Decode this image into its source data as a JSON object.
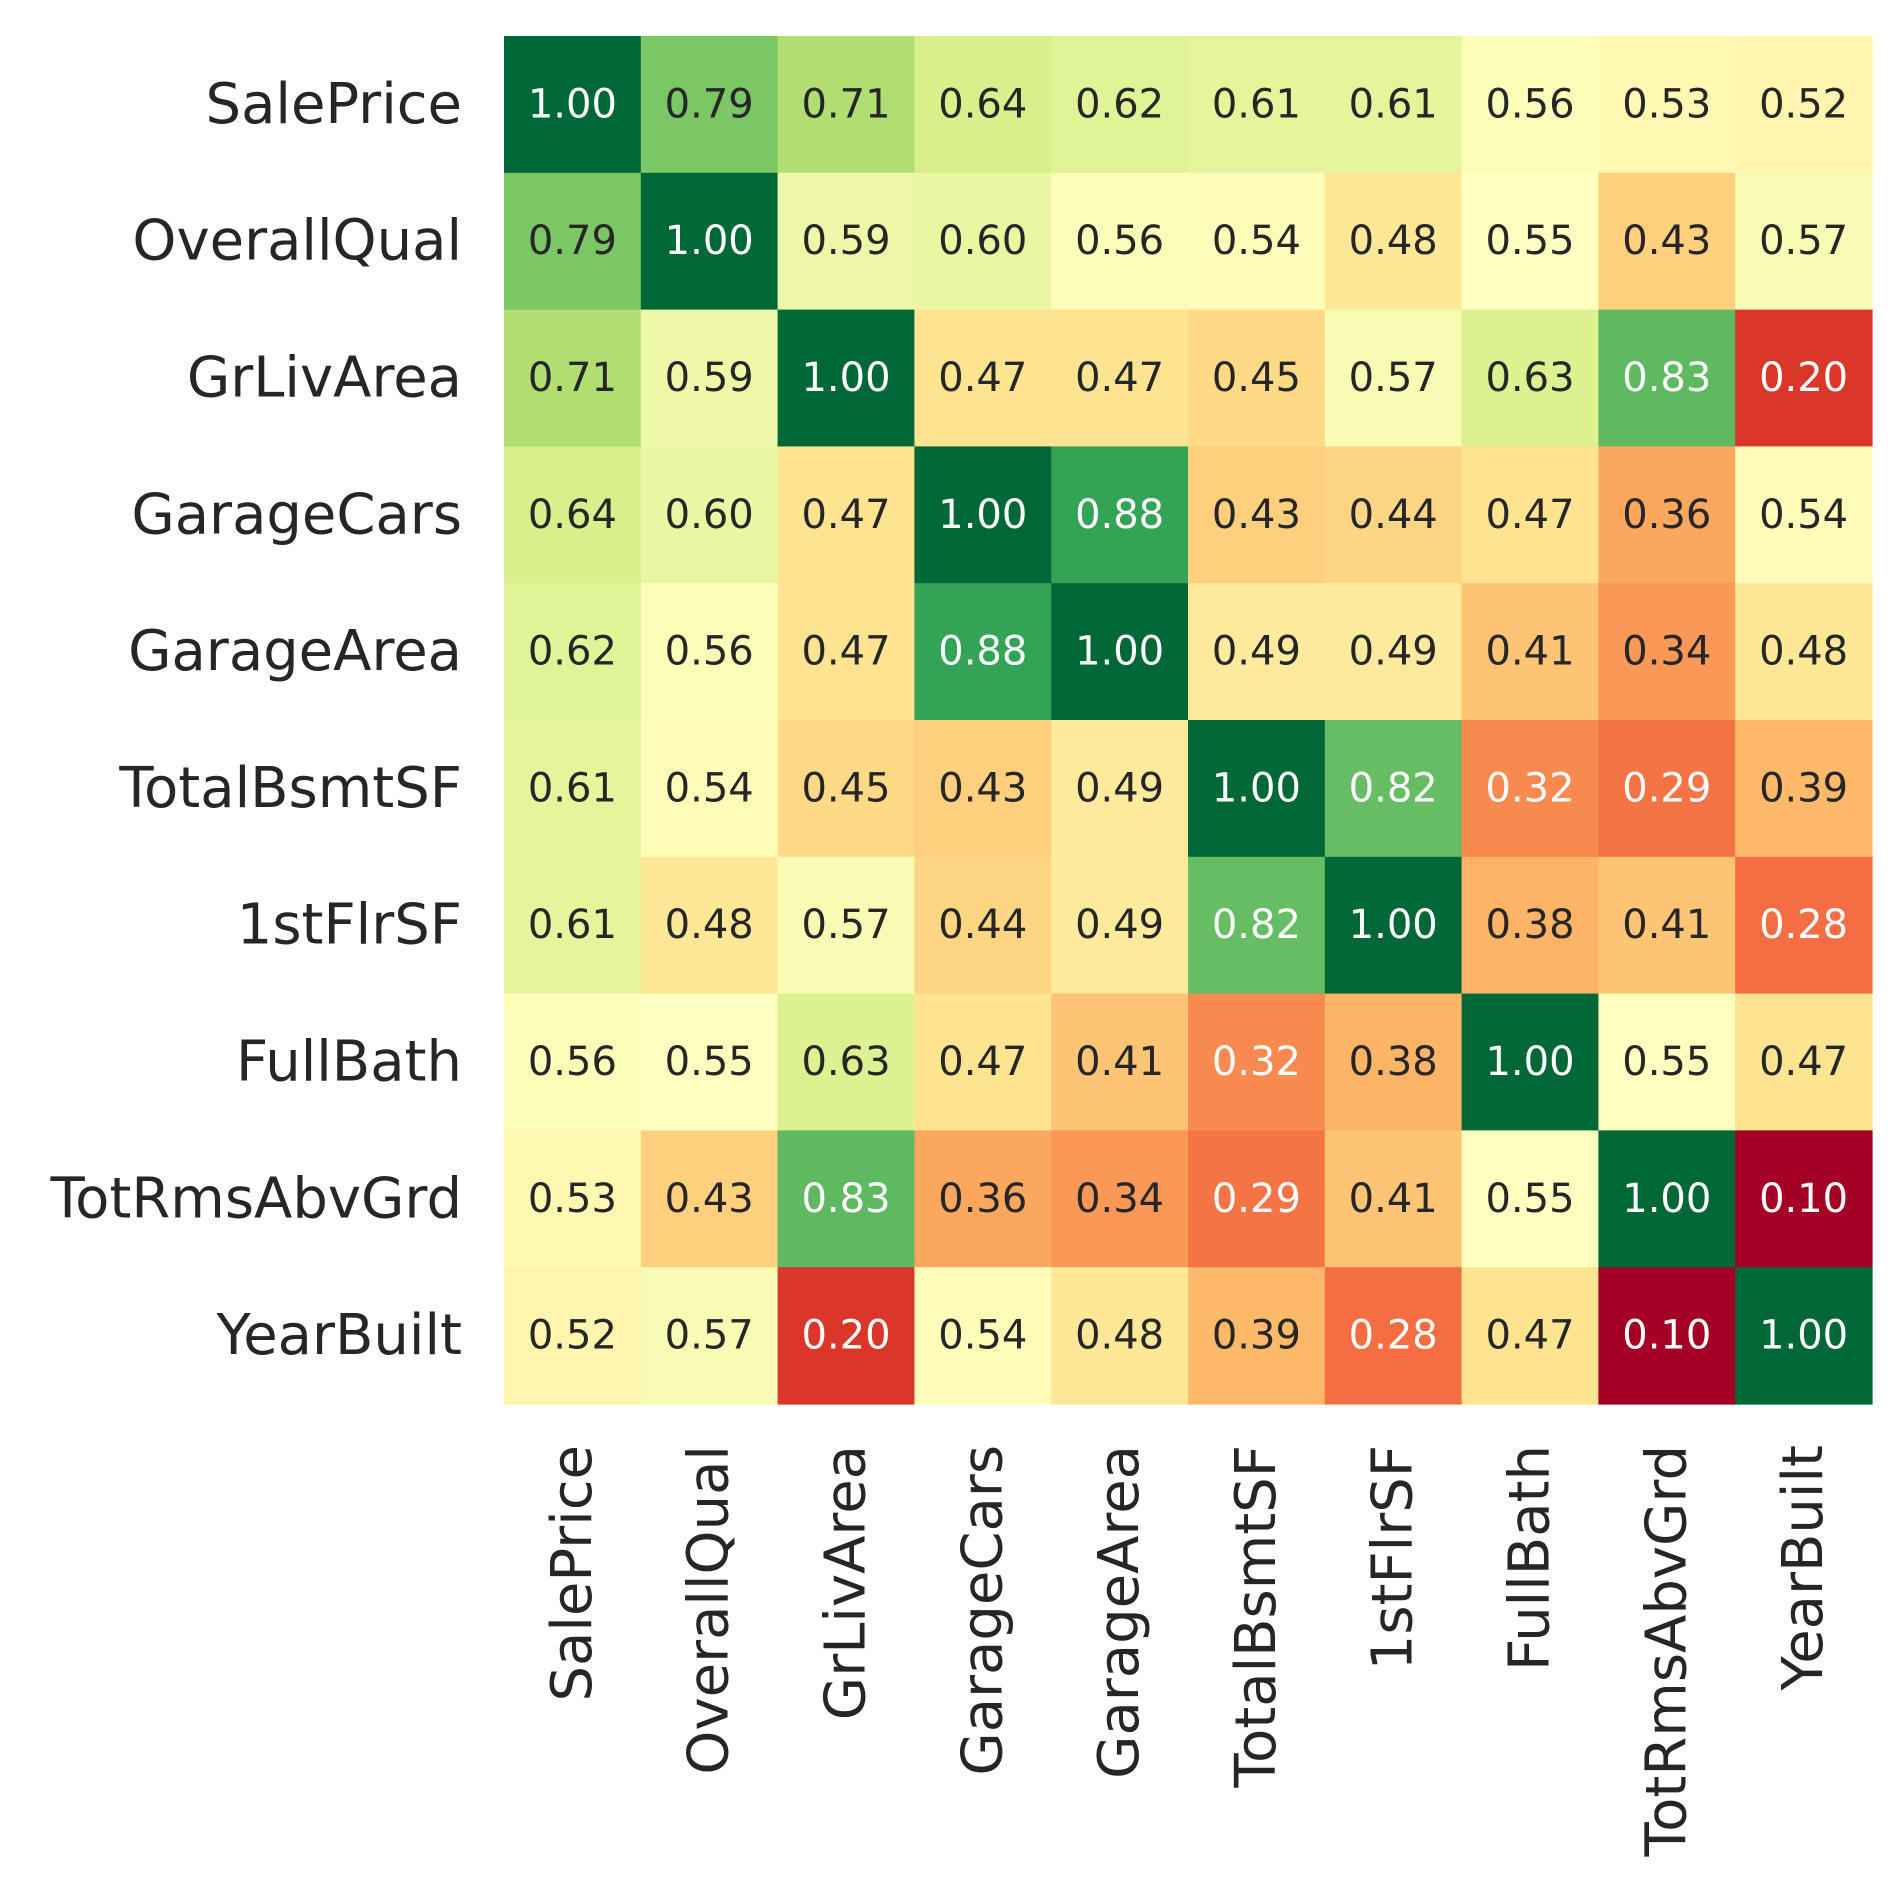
{
  "chart_data": {
    "type": "heatmap",
    "title": "",
    "xlabel": "",
    "ylabel": "",
    "colormap": "RdYlGn",
    "value_range": [
      0.1,
      1.0
    ],
    "value_format": "0.00",
    "annotations": true,
    "colorbar": false,
    "rows": [
      "SalePrice",
      "OverallQual",
      "GrLivArea",
      "GarageCars",
      "GarageArea",
      "TotalBsmtSF",
      "1stFlrSF",
      "FullBath",
      "TotRmsAbvGrd",
      "YearBuilt"
    ],
    "columns": [
      "SalePrice",
      "OverallQual",
      "GrLivArea",
      "GarageCars",
      "GarageArea",
      "TotalBsmtSF",
      "1stFlrSF",
      "FullBath",
      "TotRmsAbvGrd",
      "YearBuilt"
    ],
    "values": [
      [
        1.0,
        0.79,
        0.71,
        0.64,
        0.62,
        0.61,
        0.61,
        0.56,
        0.53,
        0.52
      ],
      [
        0.79,
        1.0,
        0.59,
        0.6,
        0.56,
        0.54,
        0.48,
        0.55,
        0.43,
        0.57
      ],
      [
        0.71,
        0.59,
        1.0,
        0.47,
        0.47,
        0.45,
        0.57,
        0.63,
        0.83,
        0.2
      ],
      [
        0.64,
        0.6,
        0.47,
        1.0,
        0.88,
        0.43,
        0.44,
        0.47,
        0.36,
        0.54
      ],
      [
        0.62,
        0.56,
        0.47,
        0.88,
        1.0,
        0.49,
        0.49,
        0.41,
        0.34,
        0.48
      ],
      [
        0.61,
        0.54,
        0.45,
        0.43,
        0.49,
        1.0,
        0.82,
        0.32,
        0.29,
        0.39
      ],
      [
        0.61,
        0.48,
        0.57,
        0.44,
        0.49,
        0.82,
        1.0,
        0.38,
        0.41,
        0.28
      ],
      [
        0.56,
        0.55,
        0.63,
        0.47,
        0.41,
        0.32,
        0.38,
        1.0,
        0.55,
        0.47
      ],
      [
        0.53,
        0.43,
        0.83,
        0.36,
        0.34,
        0.29,
        0.41,
        0.55,
        1.0,
        0.1
      ],
      [
        0.52,
        0.57,
        0.2,
        0.54,
        0.48,
        0.39,
        0.28,
        0.47,
        0.1,
        1.0
      ]
    ],
    "text_colors": {
      "dark": "#262626",
      "light": "#ffffff"
    }
  }
}
